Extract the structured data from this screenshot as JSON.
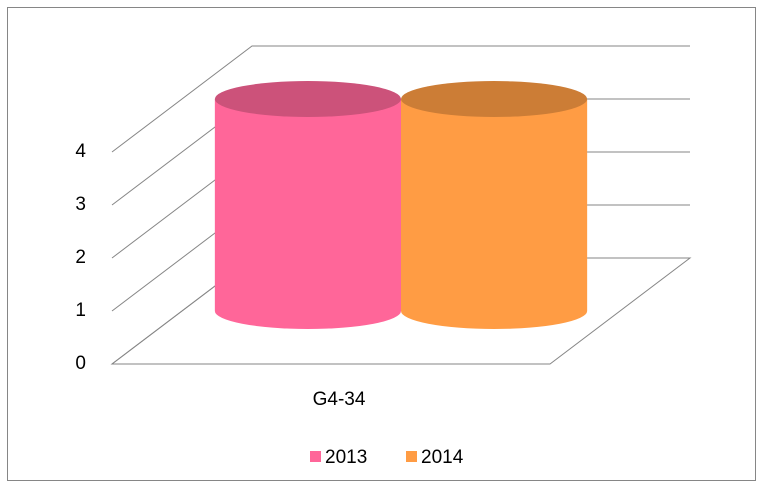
{
  "chart_data": {
    "type": "bar3d",
    "categories": [
      "G4-34"
    ],
    "series": [
      {
        "name": "2013",
        "color": "#ff6699",
        "values": [
          4
        ]
      },
      {
        "name": "2014",
        "color": "#ff9c44",
        "values": [
          4
        ]
      }
    ],
    "ylim": [
      0,
      4
    ],
    "yticks": [
      0,
      1,
      2,
      3,
      4
    ],
    "grid": true,
    "legend": "bottom"
  }
}
